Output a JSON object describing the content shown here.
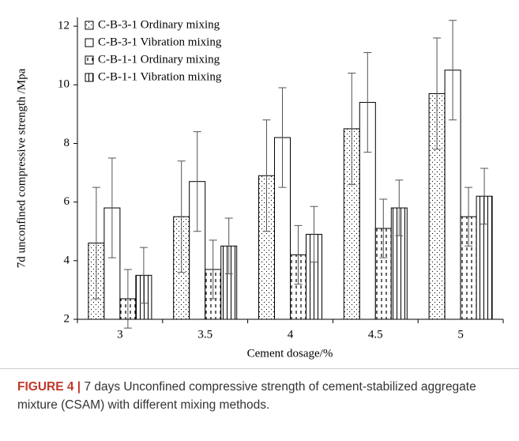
{
  "chart_data": {
    "type": "bar",
    "ylabel": "7d unconfined compressive strength /Mpa",
    "xlabel": "Cement dosage/%",
    "categories": [
      "3",
      "3.5",
      "4",
      "4.5",
      "5"
    ],
    "series": [
      {
        "name": "C-B-3-1 Ordinary mixing",
        "color": "#000000",
        "pattern": "dots",
        "values": [
          4.6,
          5.5,
          6.9,
          8.5,
          9.7
        ],
        "errors": [
          1.9,
          1.9,
          1.9,
          1.9,
          1.9
        ]
      },
      {
        "name": "C-B-3-1 Vibration mixing",
        "color": "#000000",
        "pattern": "none",
        "values": [
          5.8,
          6.7,
          8.2,
          9.4,
          10.5
        ],
        "errors": [
          1.7,
          1.7,
          1.7,
          1.7,
          1.7
        ]
      },
      {
        "name": "C-B-1-1 Ordinary mixing",
        "color": "#000000",
        "pattern": "dashes",
        "values": [
          2.7,
          3.7,
          4.2,
          5.1,
          5.5
        ],
        "errors": [
          1.0,
          1.0,
          1.0,
          1.0,
          1.0
        ]
      },
      {
        "name": "C-B-1-1 Vibration mixing",
        "color": "#000000",
        "pattern": "lines",
        "values": [
          3.5,
          4.5,
          4.9,
          5.8,
          6.2
        ],
        "errors": [
          0.95,
          0.95,
          0.95,
          0.95,
          0.95
        ]
      }
    ],
    "ylim": [
      2,
      12.3
    ],
    "yticks": [
      2,
      4,
      6,
      8,
      10,
      12
    ],
    "legend": "upper left"
  },
  "caption": {
    "label": "FIGURE 4 |",
    "text": "7 days Unconfined compressive strength of cement-stabilized aggregate mixture (CSAM) with different mixing methods."
  }
}
